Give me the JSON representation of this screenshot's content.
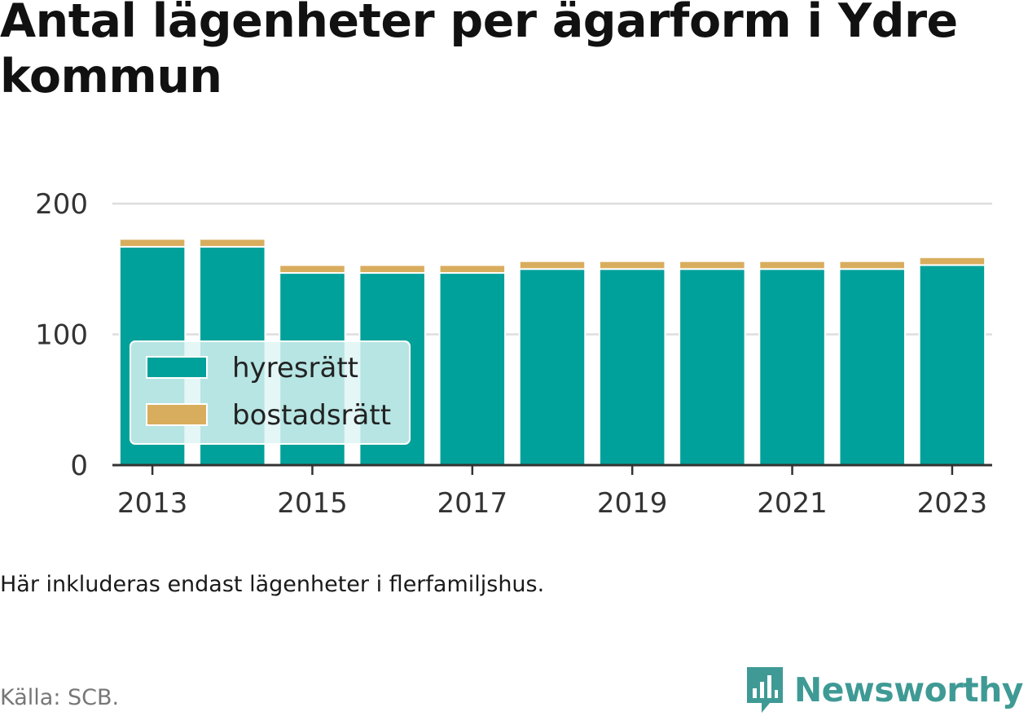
{
  "title": "Antal lägenheter per ägarform i Ydre kommun",
  "note": "Här inkluderas endast lägenheter i flerfamiljshus.",
  "source": "Källa: SCB.",
  "brand": {
    "name": "Newsworthy",
    "icon": "newsworthy-logo-icon",
    "color": "#3f9a95"
  },
  "chart_data": {
    "type": "bar",
    "stacked": true,
    "categories": [
      "2013",
      "2014",
      "2015",
      "2016",
      "2017",
      "2018",
      "2019",
      "2020",
      "2021",
      "2022",
      "2023"
    ],
    "x_tick_labels": [
      "2013",
      "2015",
      "2017",
      "2019",
      "2021",
      "2023"
    ],
    "y_ticks": [
      "0",
      "100",
      "200"
    ],
    "ylim": [
      0,
      200
    ],
    "grid": true,
    "legend_position": "left",
    "series": [
      {
        "name": "hyresrätt",
        "color": "#00a19a",
        "values": [
          167,
          167,
          147,
          147,
          147,
          150,
          150,
          150,
          150,
          150,
          153
        ]
      },
      {
        "name": "bostadsrätt",
        "color": "#d9ad5e",
        "values": [
          6,
          6,
          6,
          6,
          6,
          6,
          6,
          6,
          6,
          6,
          6
        ]
      }
    ]
  }
}
